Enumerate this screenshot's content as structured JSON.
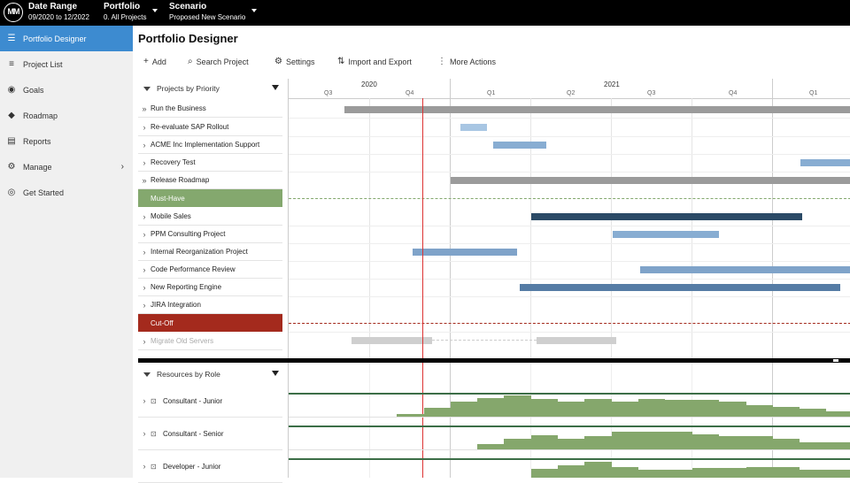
{
  "topbar": {
    "logo": "MM",
    "date_range": {
      "label": "Date Range",
      "value": "09/2020 to 12/2022"
    },
    "portfolio": {
      "label": "Portfolio",
      "value": "0. All Projects"
    },
    "scenario": {
      "label": "Scenario",
      "value": "Proposed New Scenario"
    }
  },
  "sidebar": {
    "items": [
      {
        "label": "Portfolio Designer",
        "icon": "designer-icon",
        "active": true
      },
      {
        "label": "Project List",
        "icon": "list-icon"
      },
      {
        "label": "Goals",
        "icon": "target-icon"
      },
      {
        "label": "Roadmap",
        "icon": "roadmap-icon"
      },
      {
        "label": "Reports",
        "icon": "reports-icon"
      },
      {
        "label": "Manage",
        "icon": "gear-icon",
        "has_submenu": true
      },
      {
        "label": "Get Started",
        "icon": "compass-icon"
      }
    ]
  },
  "page": {
    "title": "Portfolio Designer"
  },
  "toolbar": {
    "add": "Add",
    "search": "Search Project",
    "settings": "Settings",
    "import_export": "Import and Export",
    "more": "More Actions"
  },
  "projects_panel": {
    "header": "Projects by Priority",
    "rows": [
      {
        "label": "Run the Business",
        "chev": "»"
      },
      {
        "label": "Re-evaluate SAP Rollout",
        "chev": "›"
      },
      {
        "label": "ACME Inc Implementation Support",
        "chev": "›"
      },
      {
        "label": "Recovery Test",
        "chev": "›"
      },
      {
        "label": "Release Roadmap",
        "chev": "»"
      },
      {
        "label": "Must-Have",
        "category": true,
        "color": "#84a86e"
      },
      {
        "label": "Mobile Sales",
        "chev": "›"
      },
      {
        "label": "PPM Consulting Project",
        "chev": "›"
      },
      {
        "label": "Internal Reorganization Project",
        "chev": "›"
      },
      {
        "label": "Code Performance Review",
        "chev": "›"
      },
      {
        "label": "New Reporting Engine",
        "chev": "›"
      },
      {
        "label": "JIRA Integration",
        "chev": "›"
      },
      {
        "label": "Cut-Off",
        "category": true,
        "color": "#a42a1d"
      },
      {
        "label": "Migrate Old Servers",
        "chev": "›",
        "muted": true
      }
    ]
  },
  "timeline": {
    "years": [
      "2020",
      "2021"
    ],
    "quarters": [
      "Q3",
      "Q4",
      "Q1",
      "Q2",
      "Q3",
      "Q4",
      "Q1"
    ]
  },
  "resources_panel": {
    "header": "Resources by Role",
    "rows": [
      {
        "label": "Consultant - Junior"
      },
      {
        "label": "Consultant - Senior"
      },
      {
        "label": "Developer - Junior"
      }
    ]
  },
  "colors": {
    "accent": "#3d8bd0",
    "must_have": "#84a86e",
    "cut_off": "#a42a1d",
    "today_line": "#dd3333"
  }
}
